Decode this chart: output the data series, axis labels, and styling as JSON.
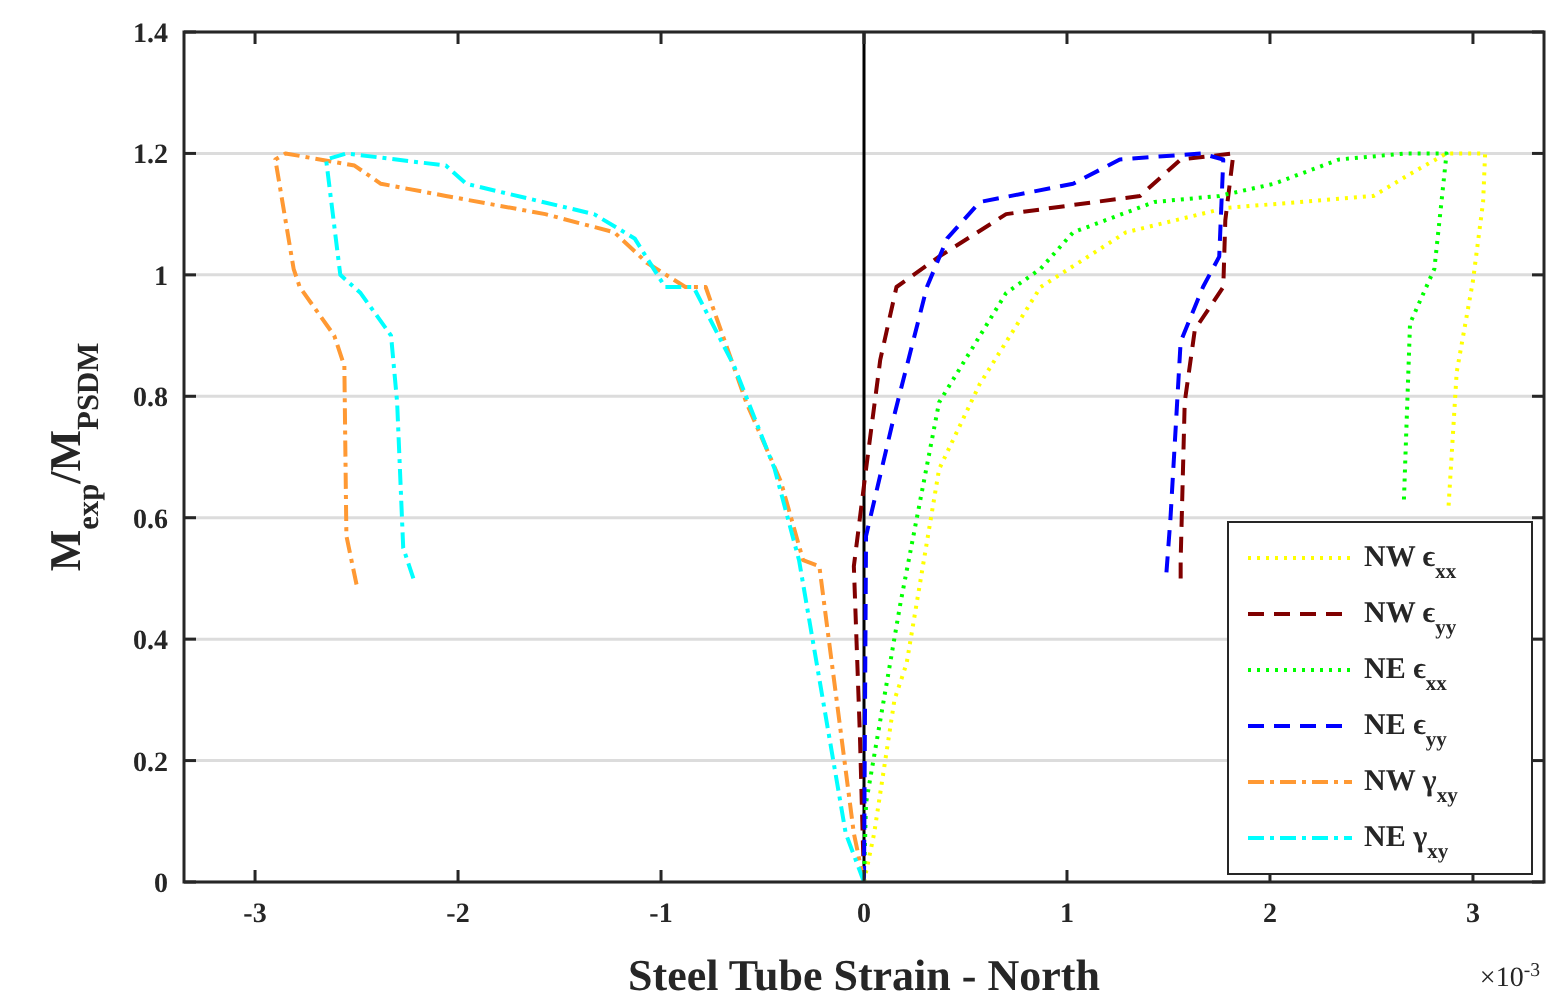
{
  "chart_data": {
    "type": "line",
    "xlabel": "Steel Tube Strain - North",
    "ylabel": "M$_{exp}$/M$_{PSDM}$",
    "xlim": [
      -3.35,
      3.35
    ],
    "ylim": [
      0,
      1.4
    ],
    "xticks": [
      -3,
      -2,
      -1,
      0,
      1,
      2,
      3
    ],
    "yticks": [
      0,
      0.2,
      0.4,
      0.6,
      0.8,
      1,
      1.2,
      1.4
    ],
    "grid": "y",
    "legend": "bottom right",
    "annotations": [
      "×10$^{-3}$"
    ],
    "ref_lines": [
      {
        "axis": "x",
        "value": 0,
        "color": "#000000"
      }
    ],
    "series": [
      {
        "name": "NW ϵ$_{xx}$",
        "color": "#ffff00",
        "line_style": "dotted",
        "x": [
          0,
          0.05,
          0.15,
          0.21,
          0.37,
          0.57,
          0.87,
          1.29,
          1.78,
          2.51,
          2.61,
          2.71,
          2.87,
          3.06,
          3.05,
          3.0,
          2.92,
          2.88
        ],
        "values": [
          0,
          0.08,
          0.3,
          0.36,
          0.68,
          0.82,
          0.98,
          1.07,
          1.11,
          1.13,
          1.15,
          1.17,
          1.2,
          1.2,
          1.12,
          0.99,
          0.84,
          0.62
        ]
      },
      {
        "name": "NW ϵ$_{yy}$",
        "color": "#800000",
        "line_style": "dashed",
        "x": [
          0,
          -0.02,
          -0.05,
          0.01,
          0.08,
          0.16,
          0.37,
          0.7,
          1.36,
          1.56,
          1.82,
          1.78,
          1.77,
          1.63,
          1.58,
          1.56,
          1.56
        ],
        "values": [
          0,
          0.24,
          0.52,
          0.68,
          0.86,
          0.98,
          1.03,
          1.1,
          1.13,
          1.19,
          1.2,
          1.09,
          0.98,
          0.91,
          0.79,
          0.53,
          0.5
        ]
      },
      {
        "name": "NE ϵ$_{xx}$",
        "color": "#00ff00",
        "line_style": "dotted",
        "x": [
          0,
          0.01,
          0.18,
          0.37,
          0.7,
          0.87,
          1.03,
          1.43,
          1.75,
          2.02,
          2.34,
          2.67,
          2.87,
          2.81,
          2.69,
          2.66
        ],
        "values": [
          0,
          0.13,
          0.46,
          0.79,
          0.97,
          1.01,
          1.07,
          1.12,
          1.13,
          1.15,
          1.19,
          1.2,
          1.2,
          1.01,
          0.92,
          0.63
        ]
      },
      {
        "name": "NE ϵ$_{yy}$",
        "color": "#0000ff",
        "line_style": "dashed",
        "x": [
          0,
          0.01,
          0.15,
          0.31,
          0.41,
          0.57,
          1.03,
          1.26,
          1.66,
          1.77,
          1.75,
          1.67,
          1.56,
          1.51,
          1.49
        ],
        "values": [
          0,
          0.57,
          0.77,
          0.98,
          1.06,
          1.12,
          1.15,
          1.19,
          1.2,
          1.19,
          1.03,
          0.98,
          0.89,
          0.6,
          0.51
        ]
      },
      {
        "name": "NW γ$_{xy}$",
        "color": "#ff9933",
        "line_style": "dashdot",
        "x": [
          0,
          -0.05,
          -0.22,
          -0.3,
          -0.41,
          -0.58,
          -0.78,
          -0.88,
          -1.07,
          -1.23,
          -1.57,
          -2.06,
          -2.38,
          -2.51,
          -2.85,
          -2.9,
          -2.81,
          -2.78,
          -2.61,
          -2.56,
          -2.55,
          -2.5
        ],
        "values": [
          0,
          0.08,
          0.52,
          0.53,
          0.66,
          0.79,
          0.98,
          0.98,
          1.02,
          1.07,
          1.1,
          1.13,
          1.15,
          1.18,
          1.2,
          1.19,
          1.01,
          0.98,
          0.9,
          0.85,
          0.57,
          0.49
        ]
      },
      {
        "name": "NE γ$_{xy}$",
        "color": "#00ffff",
        "line_style": "dashdot",
        "x": [
          0,
          -0.09,
          -0.32,
          -0.44,
          -0.64,
          -0.84,
          -0.98,
          -1.13,
          -1.33,
          -1.96,
          -2.06,
          -2.55,
          -2.65,
          -2.58,
          -2.48,
          -2.33,
          -2.3,
          -2.27,
          -2.22
        ],
        "values": [
          0,
          0.08,
          0.53,
          0.68,
          0.85,
          0.98,
          0.98,
          1.06,
          1.1,
          1.15,
          1.18,
          1.2,
          1.19,
          1.0,
          0.97,
          0.9,
          0.79,
          0.55,
          0.5
        ]
      }
    ]
  }
}
